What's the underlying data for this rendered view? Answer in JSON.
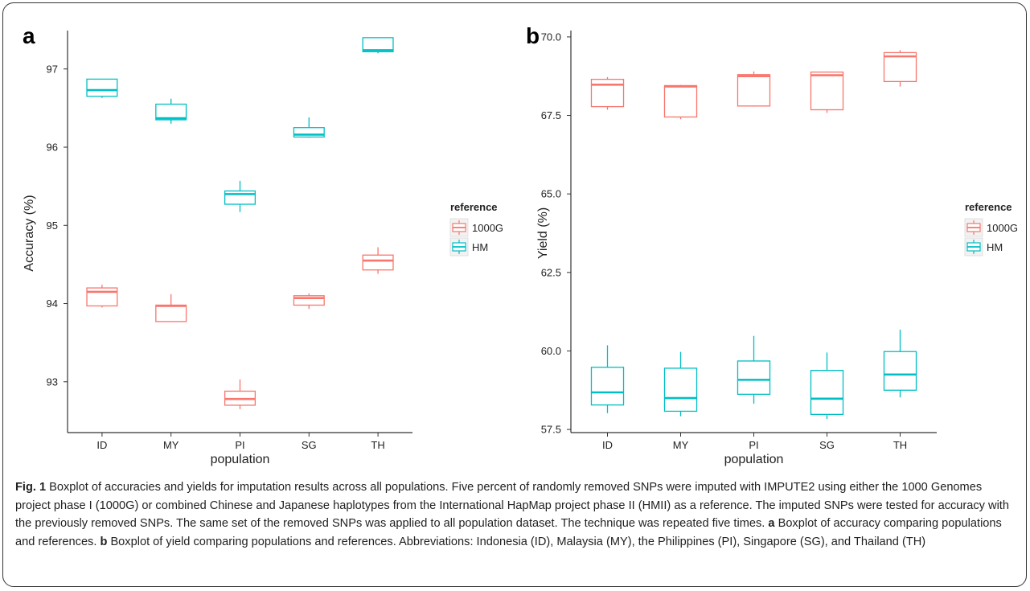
{
  "colors": {
    "ref_1000G": "#F8766D",
    "ref_HM": "#00BFC4",
    "axis": "#333333",
    "text": "#222222"
  },
  "chart_data": [
    {
      "panel": "a",
      "type": "boxplot",
      "xlabel": "population",
      "ylabel": "Accuracy (%)",
      "categories": [
        "ID",
        "MY",
        "PI",
        "SG",
        "TH"
      ],
      "ylim": [
        92.35,
        97.45
      ],
      "yticks": [
        93,
        94,
        95,
        96,
        97
      ],
      "ytick_labels": [
        "93",
        "94",
        "95",
        "96",
        "97"
      ],
      "grid": false,
      "legend": {
        "title": "reference",
        "position": "right",
        "entries": [
          "1000G",
          "HM"
        ]
      },
      "series": [
        {
          "name": "1000G",
          "boxes": [
            {
              "category": "ID",
              "min": 93.95,
              "q1": 93.97,
              "median": 94.15,
              "q3": 94.2,
              "max": 94.24
            },
            {
              "category": "MY",
              "min": 93.77,
              "q1": 93.77,
              "median": 93.97,
              "q3": 93.98,
              "max": 94.12
            },
            {
              "category": "PI",
              "min": 92.65,
              "q1": 92.7,
              "median": 92.78,
              "q3": 92.88,
              "max": 93.03
            },
            {
              "category": "SG",
              "min": 93.93,
              "q1": 93.98,
              "median": 94.07,
              "q3": 94.1,
              "max": 94.13
            },
            {
              "category": "TH",
              "min": 94.38,
              "q1": 94.43,
              "median": 94.55,
              "q3": 94.62,
              "max": 94.72
            }
          ]
        },
        {
          "name": "HM",
          "boxes": [
            {
              "category": "ID",
              "min": 96.63,
              "q1": 96.65,
              "median": 96.73,
              "q3": 96.87,
              "max": 96.87
            },
            {
              "category": "MY",
              "min": 96.3,
              "q1": 96.35,
              "median": 96.37,
              "q3": 96.55,
              "max": 96.62
            },
            {
              "category": "PI",
              "min": 95.17,
              "q1": 95.27,
              "median": 95.4,
              "q3": 95.44,
              "max": 95.57
            },
            {
              "category": "SG",
              "min": 96.12,
              "q1": 96.13,
              "median": 96.16,
              "q3": 96.25,
              "max": 96.38
            },
            {
              "category": "TH",
              "min": 97.2,
              "q1": 97.22,
              "median": 97.24,
              "q3": 97.4,
              "max": 97.4
            }
          ]
        }
      ]
    },
    {
      "panel": "b",
      "type": "boxplot",
      "xlabel": "population",
      "ylabel": "Yield (%)",
      "categories": [
        "ID",
        "MY",
        "PI",
        "SG",
        "TH"
      ],
      "ylim": [
        57.4,
        70.1
      ],
      "yticks": [
        57.5,
        60.0,
        62.5,
        65.0,
        67.5,
        70.0
      ],
      "ytick_labels": [
        "57.5",
        "60.0",
        "62.5",
        "65.0",
        "67.5",
        "70.0"
      ],
      "grid": false,
      "legend": {
        "title": "reference",
        "position": "right",
        "entries": [
          "1000G",
          "HM"
        ]
      },
      "series": [
        {
          "name": "1000G",
          "boxes": [
            {
              "category": "ID",
              "min": 67.68,
              "q1": 67.78,
              "median": 68.48,
              "q3": 68.65,
              "max": 68.72
            },
            {
              "category": "MY",
              "min": 67.38,
              "q1": 67.45,
              "median": 68.42,
              "q3": 68.45,
              "max": 68.47
            },
            {
              "category": "PI",
              "min": 67.78,
              "q1": 67.8,
              "median": 68.75,
              "q3": 68.8,
              "max": 68.9
            },
            {
              "category": "SG",
              "min": 67.58,
              "q1": 67.68,
              "median": 68.78,
              "q3": 68.88,
              "max": 68.9
            },
            {
              "category": "TH",
              "min": 68.42,
              "q1": 68.58,
              "median": 69.38,
              "q3": 69.5,
              "max": 69.58
            }
          ]
        },
        {
          "name": "HM",
          "boxes": [
            {
              "category": "ID",
              "min": 58.02,
              "q1": 58.28,
              "median": 58.68,
              "q3": 59.48,
              "max": 60.18
            },
            {
              "category": "MY",
              "min": 57.92,
              "q1": 58.08,
              "median": 58.5,
              "q3": 59.45,
              "max": 59.97
            },
            {
              "category": "PI",
              "min": 58.32,
              "q1": 58.62,
              "median": 59.08,
              "q3": 59.68,
              "max": 60.48
            },
            {
              "category": "SG",
              "min": 57.83,
              "q1": 57.98,
              "median": 58.48,
              "q3": 59.38,
              "max": 59.95
            },
            {
              "category": "TH",
              "min": 58.52,
              "q1": 58.75,
              "median": 59.25,
              "q3": 59.98,
              "max": 60.68
            }
          ]
        }
      ]
    }
  ],
  "caption": {
    "label": "Fig. 1",
    "intro": " Boxplot of accuracies and yields for imputation results across all populations. Five percent of randomly removed SNPs were imputed with IMPUTE2 using either the 1000 Genomes project phase I (1000G) or combined Chinese and Japanese haplotypes from the International HapMap project phase II (HMII) as a reference. The imputed SNPs were tested for accuracy with the previously removed SNPs. The same set of the removed SNPs was applied to all population dataset. The technique was repeated five times. ",
    "part_a_label": "a",
    "part_a_text": " Boxplot of accuracy comparing populations and references. ",
    "part_b_label": "b",
    "part_b_text": " Boxplot of yield comparing populations and references. Abbreviations: Indonesia (ID), Malaysia (MY), the Philippines (PI), Singapore (SG), and Thailand (TH)"
  }
}
